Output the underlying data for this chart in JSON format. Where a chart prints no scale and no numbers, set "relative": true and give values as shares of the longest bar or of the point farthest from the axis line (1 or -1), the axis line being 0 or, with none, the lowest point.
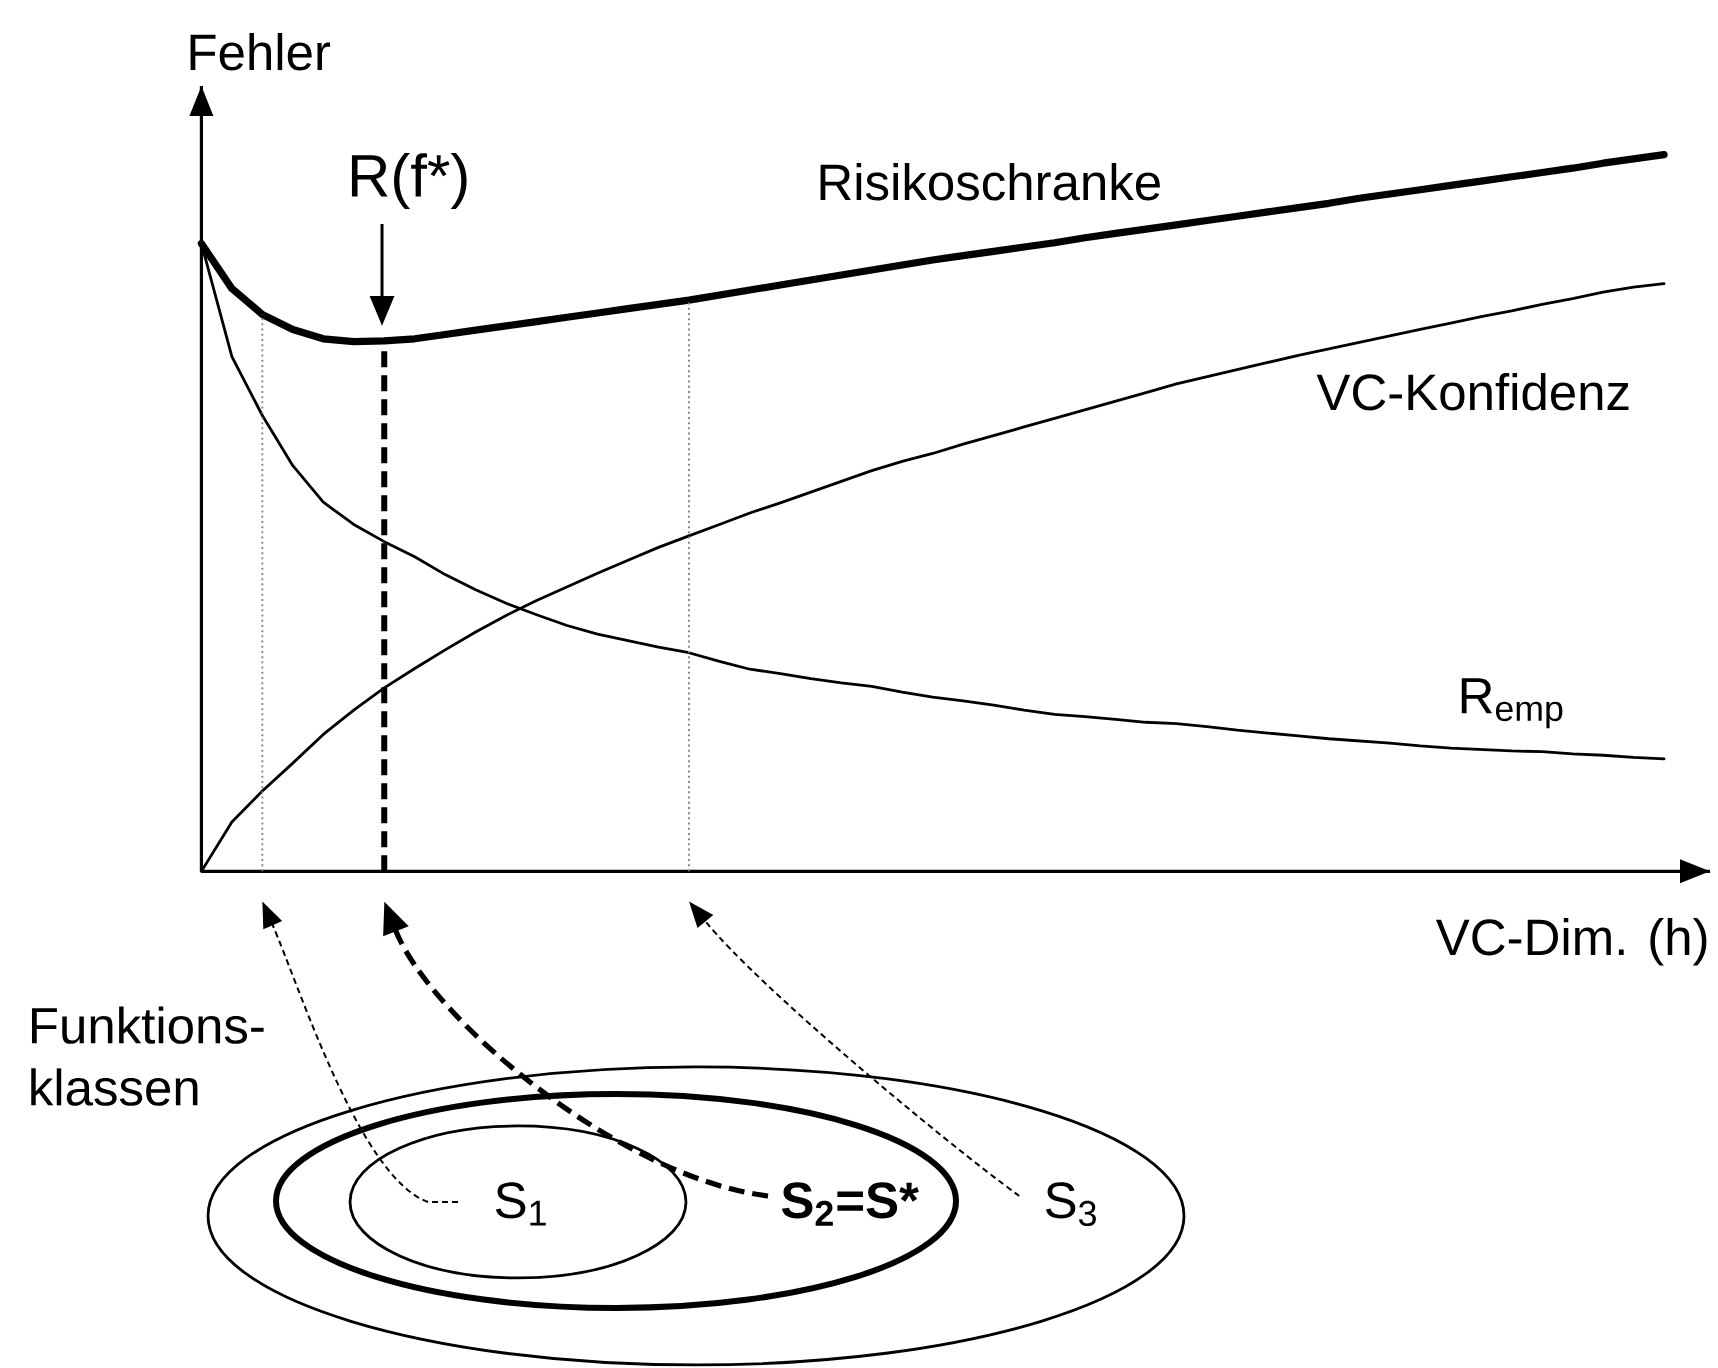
{
  "chart_data": {
    "type": "line",
    "relative": true,
    "xlabel": "VC-Dim. (h)",
    "ylabel": "Fehler",
    "categories": [
      null,
      null,
      null,
      null,
      null,
      null,
      null,
      null,
      null,
      null,
      null,
      null,
      null,
      null,
      null,
      null,
      null,
      null,
      null,
      null,
      null,
      null,
      null,
      null,
      null,
      null,
      null,
      null,
      null,
      null,
      null,
      null,
      null,
      null,
      null,
      null,
      null,
      null,
      null,
      null,
      null,
      null,
      null,
      null,
      null,
      null,
      null,
      null,
      null
    ],
    "series": [
      {
        "name": "Risikoschranke",
        "color": "#000000",
        "values": [
          0.876,
          0.813,
          0.777,
          0.756,
          0.743,
          0.739,
          0.74,
          0.743,
          0.749,
          0.755,
          0.761,
          0.767,
          0.773,
          0.779,
          0.785,
          0.791,
          0.797,
          0.804,
          0.811,
          0.818,
          0.825,
          0.832,
          0.839,
          0.846,
          0.853,
          0.859,
          0.865,
          0.871,
          0.877,
          0.884,
          0.89,
          0.896,
          0.902,
          0.908,
          0.914,
          0.92,
          0.926,
          0.932,
          0.939,
          0.945,
          0.951,
          0.957,
          0.963,
          0.969,
          0.975,
          0.981,
          0.988,
          0.994,
          1.0
        ]
      },
      {
        "name": "VC-Konfidenz",
        "color": "#000000",
        "values": [
          0,
          0.069,
          0.112,
          0.151,
          0.191,
          0.225,
          0.256,
          0.283,
          0.309,
          0.334,
          0.357,
          0.378,
          0.397,
          0.416,
          0.434,
          0.452,
          0.468,
          0.484,
          0.5,
          0.514,
          0.529,
          0.544,
          0.559,
          0.572,
          0.583,
          0.596,
          0.608,
          0.62,
          0.632,
          0.644,
          0.656,
          0.668,
          0.68,
          0.69,
          0.7,
          0.71,
          0.72,
          0.729,
          0.738,
          0.747,
          0.756,
          0.765,
          0.774,
          0.782,
          0.791,
          0.799,
          0.808,
          0.815,
          0.82
        ]
      },
      {
        "name": "R$_{emp}$",
        "color": "#000000",
        "values": [
          0.876,
          0.718,
          0.636,
          0.566,
          0.515,
          0.484,
          0.46,
          0.439,
          0.414,
          0.393,
          0.374,
          0.358,
          0.343,
          0.331,
          0.322,
          0.313,
          0.305,
          0.293,
          0.282,
          0.276,
          0.269,
          0.263,
          0.258,
          0.25,
          0.243,
          0.238,
          0.232,
          0.225,
          0.219,
          0.216,
          0.212,
          0.208,
          0.206,
          0.202,
          0.197,
          0.193,
          0.189,
          0.185,
          0.182,
          0.179,
          0.175,
          0.172,
          0.17,
          0.168,
          0.167,
          0.164,
          0.162,
          0.159,
          0.157
        ]
      }
    ],
    "annotations": [
      "R(f*)",
      "Funktions-klassen",
      "S$_{1}$",
      "S$_{2}$=S*",
      "S$_{3}$"
    ]
  }
}
